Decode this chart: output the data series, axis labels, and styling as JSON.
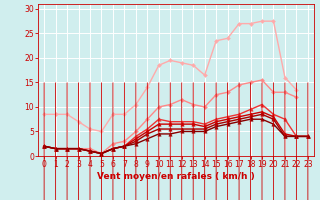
{
  "background_color": "#d0eeee",
  "grid_color": "#ffffff",
  "x_values": [
    0,
    1,
    2,
    3,
    4,
    5,
    6,
    7,
    8,
    9,
    10,
    11,
    12,
    13,
    14,
    15,
    16,
    17,
    18,
    19,
    20,
    21,
    22,
    23
  ],
  "lines": [
    {
      "color": "#ffaaaa",
      "linewidth": 1.0,
      "marker": "D",
      "markersize": 2.0,
      "y": [
        8.5,
        8.5,
        8.5,
        7.0,
        5.5,
        5.0,
        8.5,
        8.5,
        10.5,
        14.0,
        18.5,
        19.5,
        19.0,
        18.5,
        16.5,
        23.5,
        24.0,
        27.0,
        27.0,
        27.5,
        27.5,
        16.0,
        13.5,
        null
      ]
    },
    {
      "color": "#ff8888",
      "linewidth": 1.0,
      "marker": "D",
      "markersize": 2.0,
      "y": [
        2.0,
        1.5,
        1.5,
        1.5,
        1.5,
        0.5,
        2.5,
        3.0,
        5.0,
        7.5,
        10.0,
        10.5,
        11.5,
        10.5,
        10.0,
        12.5,
        13.0,
        14.5,
        15.0,
        15.5,
        13.0,
        13.0,
        12.0,
        null
      ]
    },
    {
      "color": "#ee3333",
      "linewidth": 1.0,
      "marker": "^",
      "markersize": 2.5,
      "y": [
        2.0,
        1.5,
        1.5,
        1.5,
        1.0,
        0.5,
        1.5,
        2.0,
        4.0,
        5.5,
        7.5,
        7.0,
        7.0,
        7.0,
        6.5,
        7.5,
        8.0,
        8.5,
        9.5,
        10.5,
        8.5,
        7.5,
        4.0,
        4.0
      ]
    },
    {
      "color": "#cc0000",
      "linewidth": 1.0,
      "marker": "^",
      "markersize": 2.5,
      "y": [
        2.0,
        1.5,
        1.5,
        1.5,
        1.0,
        0.5,
        1.5,
        2.0,
        3.5,
        5.0,
        6.5,
        6.5,
        6.5,
        6.5,
        6.0,
        7.0,
        7.5,
        8.0,
        8.5,
        9.0,
        8.0,
        4.5,
        4.0,
        4.0
      ]
    },
    {
      "color": "#aa0000",
      "linewidth": 1.0,
      "marker": "^",
      "markersize": 2.5,
      "y": [
        2.0,
        1.5,
        1.5,
        1.5,
        1.0,
        0.5,
        1.5,
        2.0,
        3.0,
        4.5,
        5.5,
        5.5,
        5.5,
        5.5,
        5.5,
        6.5,
        7.0,
        7.5,
        8.0,
        8.5,
        7.5,
        4.0,
        4.0,
        4.0
      ]
    },
    {
      "color": "#880000",
      "linewidth": 1.0,
      "marker": "^",
      "markersize": 2.5,
      "y": [
        2.0,
        1.5,
        1.5,
        1.5,
        1.0,
        0.5,
        1.5,
        2.0,
        2.5,
        3.5,
        4.5,
        4.5,
        5.0,
        5.0,
        5.0,
        6.0,
        6.5,
        7.0,
        7.5,
        7.5,
        6.5,
        4.0,
        4.0,
        4.0
      ]
    }
  ],
  "xlabel": "Vent moyen/en rafales ( km/h )",
  "xlabel_fontsize": 6.5,
  "xlabel_color": "#cc0000",
  "xticks": [
    0,
    1,
    2,
    3,
    4,
    5,
    6,
    7,
    8,
    9,
    10,
    11,
    12,
    13,
    14,
    15,
    16,
    17,
    18,
    19,
    20,
    21,
    22,
    23
  ],
  "yticks": [
    0,
    5,
    10,
    15,
    20,
    25,
    30
  ],
  "ylim": [
    0,
    31
  ],
  "xlim": [
    -0.5,
    23.5
  ],
  "tick_color": "#cc0000",
  "tick_fontsize": 5.5,
  "ytick_fontsize": 5.5
}
